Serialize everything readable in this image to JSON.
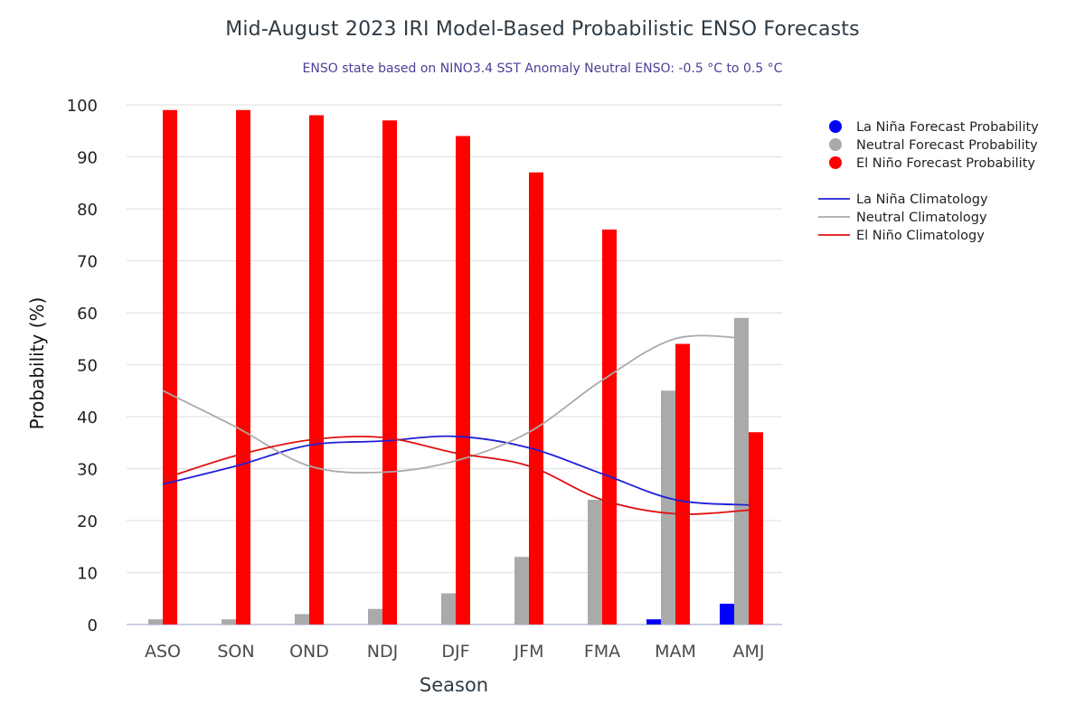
{
  "chart_data": {
    "type": "bar",
    "title": "Mid-August 2023 IRI Model-Based Probabilistic ENSO Forecasts",
    "subtitle": "ENSO state based on NINO3.4 SST Anomaly Neutral ENSO: -0.5 °C to 0.5 °C",
    "xlabel": "Season",
    "ylabel": "Probability (%)",
    "ylim": [
      0,
      100
    ],
    "yticks": [
      0,
      10,
      20,
      30,
      40,
      50,
      60,
      70,
      80,
      90,
      100
    ],
    "grid": "horizontal",
    "legend_position": "right",
    "categories": [
      "ASO",
      "SON",
      "OND",
      "NDJ",
      "DJF",
      "JFM",
      "FMA",
      "MAM",
      "AMJ"
    ],
    "bar_series": [
      {
        "name": "La Niña Forecast Probability",
        "color": "#0000ff",
        "values": [
          0,
          0,
          0,
          0,
          0,
          0,
          0,
          1,
          4
        ]
      },
      {
        "name": "Neutral Forecast Probability",
        "color": "#aaaaaa",
        "values": [
          1,
          1,
          2,
          3,
          6,
          13,
          24,
          45,
          59
        ]
      },
      {
        "name": "El Niño Forecast Probability",
        "color": "#ff0000",
        "values": [
          99,
          99,
          98,
          97,
          94,
          87,
          76,
          54,
          37
        ]
      }
    ],
    "line_series": [
      {
        "name": "La Niña Climatology",
        "color": "#1f1fd6",
        "values": [
          27,
          30.5,
          34.5,
          35.3,
          36.2,
          34,
          29,
          24,
          23
        ]
      },
      {
        "name": "Neutral Climatology",
        "color": "#aaaaaa",
        "values": [
          45,
          38,
          30.5,
          29.3,
          31.5,
          37,
          47,
          55,
          55
        ]
      },
      {
        "name": "El Niño Climatology",
        "color": "#e01010",
        "values": [
          28,
          32.5,
          35.5,
          36,
          33,
          30.5,
          24,
          21.3,
          22
        ]
      }
    ]
  }
}
